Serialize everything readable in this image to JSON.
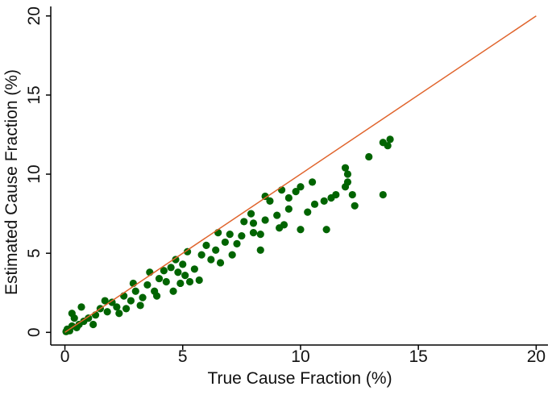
{
  "chart_data": {
    "type": "scatter",
    "x_label": "True Cause Fraction (%)",
    "y_label": "Estimated Cause Fraction (%)",
    "xlim": [
      -0.6,
      20.5
    ],
    "ylim": [
      -0.8,
      20.6
    ],
    "xticks": [
      0,
      5,
      10,
      15,
      20
    ],
    "yticks": [
      0,
      5,
      10,
      15,
      20
    ],
    "grid": false,
    "series": [
      {
        "color": "#006400",
        "x": [
          13.8,
          13.7,
          13.5,
          13.5,
          12.9,
          12.3,
          12.2,
          12.0,
          11.9,
          12.0,
          11.9,
          11.5,
          11.3,
          11.1,
          11.0,
          10.6,
          10.5,
          10.3,
          10.0,
          10.0,
          9.8,
          9.5,
          9.5,
          9.2,
          9.0,
          8.7,
          8.5,
          8.5,
          8.3,
          8.3,
          9.3,
          9.1,
          8.0,
          8.0,
          7.9,
          7.6,
          7.5,
          7.3,
          7.0,
          6.8,
          6.5,
          6.4,
          6.2,
          6.0,
          5.8,
          5.5,
          5.2,
          5.0,
          4.9,
          4.8,
          4.5,
          4.3,
          4.0,
          3.8,
          3.5,
          3.3,
          3.0,
          2.8,
          2.5,
          2.2,
          2.0,
          1.8,
          1.5,
          1.3,
          1.0,
          0.8,
          0.6,
          0.5,
          0.3,
          0.2,
          0.1,
          0.05,
          0.3,
          0.7,
          0.4,
          1.2,
          2.6,
          3.2,
          4.6,
          5.3,
          5.7,
          4.2,
          3.6,
          2.9,
          1.7,
          6.6,
          7.1,
          4.7,
          5.1,
          3.9,
          2.3
        ],
        "y": [
          12.2,
          11.8,
          12.0,
          8.7,
          11.1,
          8.0,
          8.7,
          9.5,
          10.4,
          10.0,
          9.2,
          8.7,
          8.5,
          6.5,
          8.3,
          8.1,
          9.5,
          7.6,
          9.2,
          6.5,
          8.9,
          8.5,
          7.8,
          9.0,
          7.4,
          8.3,
          8.6,
          7.1,
          6.2,
          5.2,
          6.8,
          6.6,
          6.9,
          6.3,
          7.5,
          7.0,
          6.1,
          5.6,
          6.2,
          5.7,
          6.3,
          5.2,
          4.6,
          5.5,
          4.9,
          4.0,
          5.1,
          4.3,
          3.1,
          3.8,
          4.1,
          3.2,
          3.4,
          2.6,
          3.0,
          2.2,
          2.6,
          2.0,
          2.3,
          1.6,
          1.9,
          1.3,
          1.5,
          1.1,
          0.9,
          0.7,
          0.5,
          0.3,
          0.4,
          0.1,
          0.2,
          0.05,
          1.2,
          1.6,
          0.9,
          0.5,
          1.5,
          1.7,
          2.6,
          3.2,
          3.3,
          3.9,
          3.8,
          3.1,
          2.0,
          4.4,
          4.9,
          4.6,
          3.6,
          2.3,
          1.2
        ]
      }
    ],
    "reference_line": {
      "color": "#e0642c",
      "x": [
        0,
        20
      ],
      "y": [
        0,
        20
      ]
    }
  }
}
